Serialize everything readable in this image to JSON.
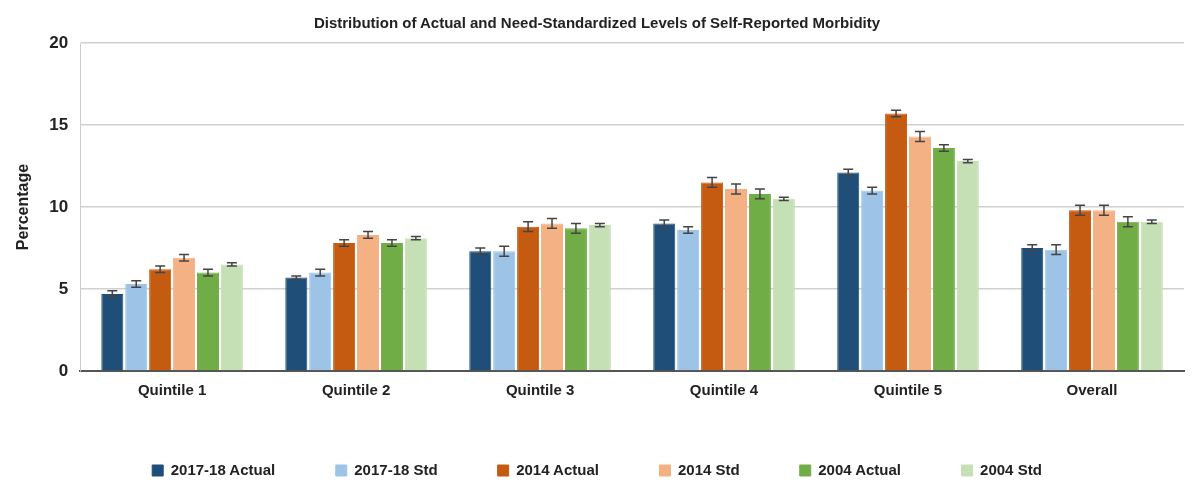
{
  "chart_data": {
    "type": "bar",
    "title": "Distribution of Actual and Need-Standardized Levels of Self-Reported Morbidity",
    "ylabel": "Percentage",
    "categories": [
      "Quintile 1",
      "Quintile 2",
      "Quintile 3",
      "Quintile 4",
      "Quintile 5",
      "Overall"
    ],
    "series": [
      {
        "name": "2017-18 Actual",
        "color": "#1f4e79",
        "values": [
          4.7,
          5.7,
          7.3,
          9.0,
          12.1,
          7.5
        ],
        "errors": [
          0.2,
          0.1,
          0.2,
          0.2,
          0.2,
          0.2
        ]
      },
      {
        "name": "2017-18 Std",
        "color": "#9dc3e6",
        "values": [
          5.3,
          6.0,
          7.3,
          8.6,
          11.0,
          7.4
        ],
        "errors": [
          0.2,
          0.2,
          0.3,
          0.2,
          0.2,
          0.3
        ]
      },
      {
        "name": "2014 Actual",
        "color": "#c55a11",
        "values": [
          6.2,
          7.8,
          8.8,
          11.5,
          15.7,
          9.8
        ],
        "errors": [
          0.2,
          0.2,
          0.3,
          0.3,
          0.2,
          0.3
        ]
      },
      {
        "name": "2014 Std",
        "color": "#f4b183",
        "values": [
          6.9,
          8.3,
          9.0,
          11.1,
          14.3,
          9.8
        ],
        "errors": [
          0.2,
          0.2,
          0.3,
          0.3,
          0.3,
          0.3
        ]
      },
      {
        "name": "2004 Actual",
        "color": "#70ad47",
        "values": [
          6.0,
          7.8,
          8.7,
          10.8,
          13.6,
          9.1
        ],
        "errors": [
          0.2,
          0.2,
          0.3,
          0.3,
          0.2,
          0.3
        ]
      },
      {
        "name": "2004 Std",
        "color": "#c5e0b4",
        "values": [
          6.5,
          8.1,
          8.9,
          10.5,
          12.8,
          9.1
        ],
        "errors": [
          0.1,
          0.1,
          0.1,
          0.1,
          0.1,
          0.1
        ]
      }
    ],
    "ylim": [
      0,
      20
    ],
    "yticks": [
      0,
      5,
      10,
      15,
      20
    ],
    "grid": "y",
    "legend": "bottom"
  }
}
